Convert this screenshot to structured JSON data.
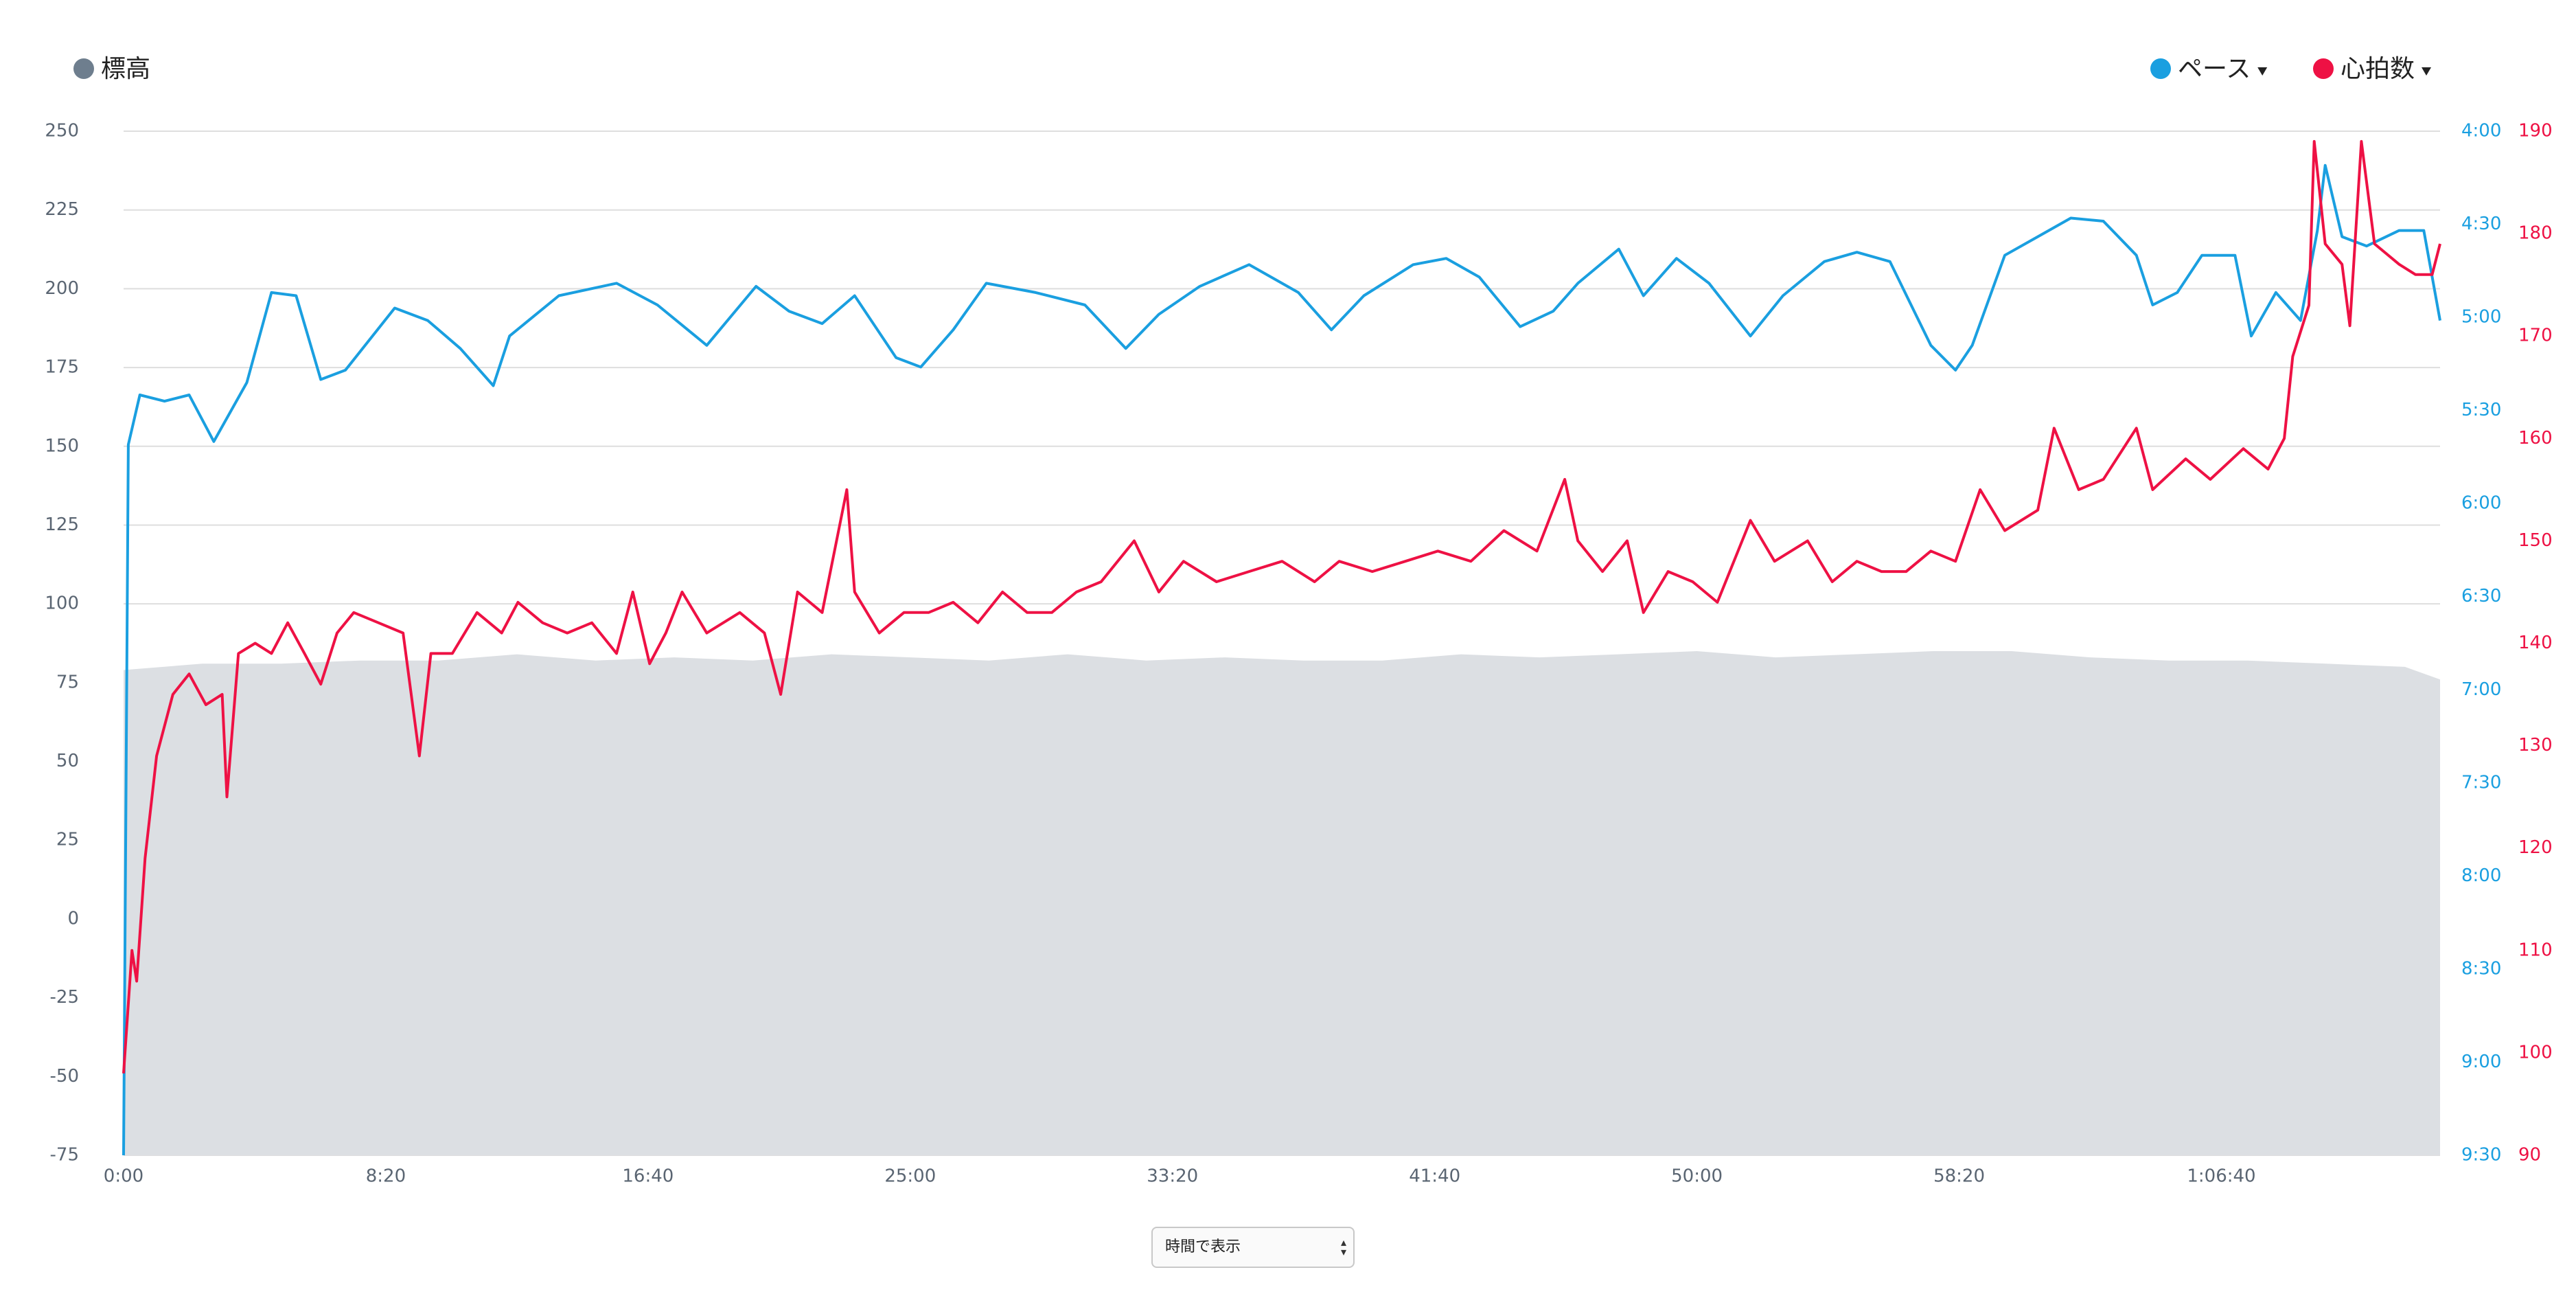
{
  "chart_data": {
    "type": "line",
    "legend": "top",
    "grid": true,
    "xlim": [
      0,
      4417
    ],
    "xticks": [
      {
        "value": 0,
        "label": "0:00"
      },
      {
        "value": 500,
        "label": "8:20"
      },
      {
        "value": 1000,
        "label": "16:40"
      },
      {
        "value": 1500,
        "label": "25:00"
      },
      {
        "value": 2000,
        "label": "33:20"
      },
      {
        "value": 2500,
        "label": "41:40"
      },
      {
        "value": 3000,
        "label": "50:00"
      },
      {
        "value": 3500,
        "label": "58:20"
      },
      {
        "value": 4000,
        "label": "1:06:40"
      }
    ],
    "ylim": [
      -75,
      250
    ],
    "yticks": [
      -75,
      -50,
      -25,
      0,
      25,
      50,
      75,
      100,
      125,
      150,
      175,
      200,
      225,
      250
    ],
    "y2lim": [
      570,
      240
    ],
    "y2ticks": [
      {
        "value": 570,
        "label": "9:30"
      },
      {
        "value": 540,
        "label": "9:00"
      },
      {
        "value": 510,
        "label": "8:30"
      },
      {
        "value": 480,
        "label": "8:00"
      },
      {
        "value": 450,
        "label": "7:30"
      },
      {
        "value": 420,
        "label": "7:00"
      },
      {
        "value": 390,
        "label": "6:30"
      },
      {
        "value": 360,
        "label": "6:00"
      },
      {
        "value": 330,
        "label": "5:30"
      },
      {
        "value": 300,
        "label": "5:00"
      },
      {
        "value": 270,
        "label": "4:30"
      },
      {
        "value": 240,
        "label": "4:00"
      }
    ],
    "y3lim": [
      90,
      190
    ],
    "y3ticks": [
      90,
      100,
      110,
      120,
      130,
      140,
      150,
      160,
      170,
      180,
      190
    ],
    "series": [
      {
        "name": "標高",
        "color": "#dcdfe3",
        "legend_color": "#6e7e8e",
        "fill": true,
        "x": [
          0,
          150,
          300,
          450,
          600,
          750,
          900,
          1050,
          1200,
          1350,
          1500,
          1650,
          1800,
          1950,
          2100,
          2250,
          2400,
          2550,
          2700,
          2850,
          3000,
          3150,
          3300,
          3450,
          3600,
          3750,
          3900,
          4050,
          4200,
          4350,
          4417
        ],
        "values": [
          79,
          81,
          81,
          82,
          82,
          84,
          82,
          83,
          82,
          84,
          83,
          82,
          84,
          82,
          83,
          82,
          82,
          84,
          83,
          84,
          85,
          83,
          84,
          85,
          85,
          83,
          82,
          82,
          81,
          80,
          76
        ]
      },
      {
        "name": "ペース",
        "color": "#1a9fe0",
        "axis": "y2",
        "x": [
          0,
          9,
          31,
          78,
          125,
          172,
          235,
          282,
          329,
          376,
          423,
          517,
          580,
          642,
          705,
          736,
          830,
          940,
          1018,
          1112,
          1206,
          1269,
          1332,
          1394,
          1473,
          1520,
          1582,
          1645,
          1739,
          1833,
          1911,
          1974,
          2052,
          2146,
          2240,
          2303,
          2365,
          2459,
          2522,
          2585,
          2663,
          2726,
          2773,
          2851,
          2898,
          2961,
          3023,
          3102,
          3164,
          3243,
          3305,
          3368,
          3446,
          3493,
          3525,
          3587,
          3650,
          3713,
          3775,
          3838,
          3869,
          3916,
          3963,
          4026,
          4057,
          4104,
          4151,
          4183,
          4198,
          4230,
          4277,
          4339,
          4386,
          4417
        ],
        "values": [
          570,
          341,
          325,
          327,
          325,
          340,
          321,
          292,
          293,
          320,
          317,
          297,
          301,
          310,
          322,
          306,
          293,
          289,
          296,
          309,
          290,
          298,
          302,
          293,
          313,
          316,
          304,
          289,
          292,
          296,
          310,
          299,
          290,
          283,
          292,
          304,
          293,
          283,
          281,
          287,
          303,
          298,
          289,
          278,
          293,
          281,
          289,
          306,
          293,
          282,
          279,
          282,
          309,
          317,
          309,
          280,
          274,
          268,
          269,
          280,
          296,
          292,
          280,
          280,
          306,
          292,
          301,
          272,
          251,
          274,
          277,
          272,
          272,
          301
        ]
      },
      {
        "name": "心拍数",
        "color": "#ee1144",
        "axis": "y3",
        "x": [
          0,
          16,
          25,
          41,
          63,
          94,
          125,
          157,
          188,
          197,
          219,
          251,
          282,
          313,
          345,
          376,
          407,
          439,
          486,
          533,
          564,
          586,
          627,
          674,
          721,
          752,
          799,
          846,
          893,
          940,
          971,
          1003,
          1034,
          1065,
          1112,
          1175,
          1222,
          1253,
          1285,
          1332,
          1379,
          1394,
          1441,
          1488,
          1535,
          1582,
          1629,
          1676,
          1723,
          1770,
          1817,
          1864,
          1927,
          1974,
          2021,
          2084,
          2146,
          2209,
          2271,
          2318,
          2381,
          2444,
          2506,
          2569,
          2632,
          2695,
          2748,
          2773,
          2820,
          2867,
          2898,
          2945,
          2992,
          3039,
          3102,
          3148,
          3211,
          3258,
          3305,
          3352,
          3399,
          3446,
          3493,
          3540,
          3587,
          3650,
          3681,
          3728,
          3775,
          3838,
          3869,
          3932,
          3979,
          4042,
          4089,
          4120,
          4136,
          4167,
          4177,
          4198,
          4230,
          4245,
          4267,
          4292,
          4339,
          4370,
          4402,
          4417
        ],
        "values": [
          98,
          110,
          107,
          119,
          129,
          135,
          137,
          134,
          135,
          125,
          139,
          140,
          139,
          142,
          139,
          136,
          141,
          143,
          142,
          141,
          129,
          139,
          139,
          143,
          141,
          144,
          142,
          141,
          142,
          139,
          145,
          138,
          141,
          145,
          141,
          143,
          141,
          135,
          145,
          143,
          155,
          145,
          141,
          143,
          143,
          144,
          142,
          145,
          143,
          143,
          145,
          146,
          150,
          145,
          148,
          146,
          147,
          148,
          146,
          148,
          147,
          148,
          149,
          148,
          151,
          149,
          156,
          150,
          147,
          150,
          143,
          147,
          146,
          144,
          152,
          148,
          150,
          146,
          148,
          147,
          147,
          149,
          148,
          155,
          151,
          153,
          161,
          155,
          156,
          161,
          155,
          158,
          156,
          159,
          157,
          160,
          168,
          173,
          189,
          179,
          177,
          171,
          189,
          179,
          177,
          176,
          176,
          179
        ]
      }
    ]
  },
  "controls": {
    "x_mode": "時間で表示"
  }
}
